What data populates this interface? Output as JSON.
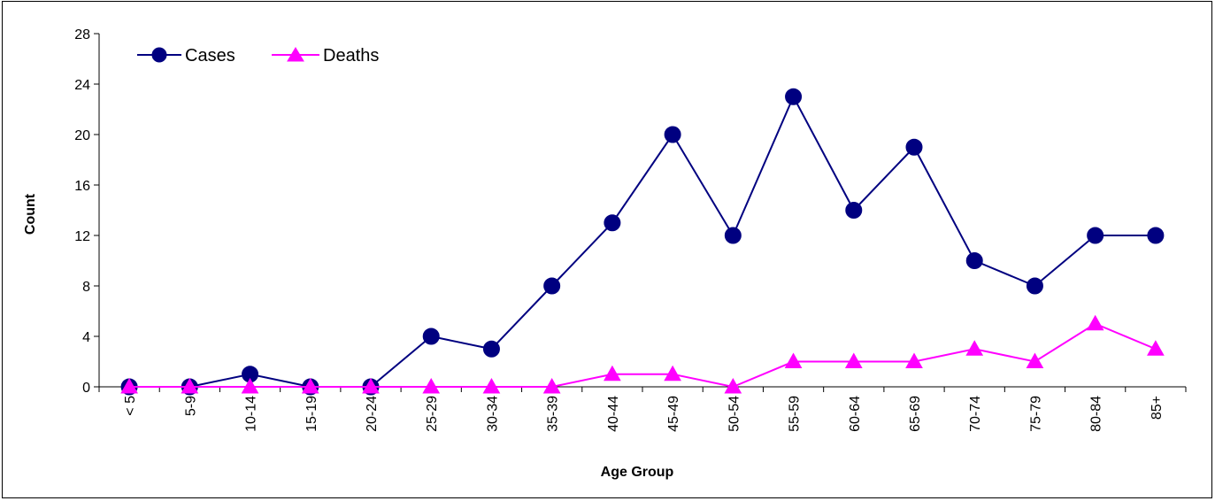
{
  "chart_data": {
    "type": "line",
    "title": "",
    "xlabel": "Age Group",
    "ylabel": "Count",
    "ylim": [
      0,
      28
    ],
    "yticks": [
      0,
      4,
      8,
      12,
      16,
      20,
      24,
      28
    ],
    "categories": [
      "< 5",
      "5-9",
      "10-14",
      "15-19",
      "20-24",
      "25-29",
      "30-34",
      "35-39",
      "40-44",
      "45-49",
      "50-54",
      "55-59",
      "60-64",
      "65-69",
      "70-74",
      "75-79",
      "80-84",
      "85+"
    ],
    "series": [
      {
        "name": "Cases",
        "color": "#000080",
        "marker": "circle",
        "values": [
          0,
          0,
          1,
          0,
          0,
          4,
          3,
          8,
          13,
          20,
          12,
          23,
          14,
          19,
          10,
          8,
          12,
          12
        ]
      },
      {
        "name": "Deaths",
        "color": "#FF00FF",
        "marker": "triangle",
        "values": [
          0,
          0,
          0,
          0,
          0,
          0,
          0,
          0,
          1,
          1,
          0,
          2,
          2,
          2,
          3,
          2,
          5,
          3
        ]
      }
    ],
    "grid": false,
    "legend_position": "top-left"
  }
}
